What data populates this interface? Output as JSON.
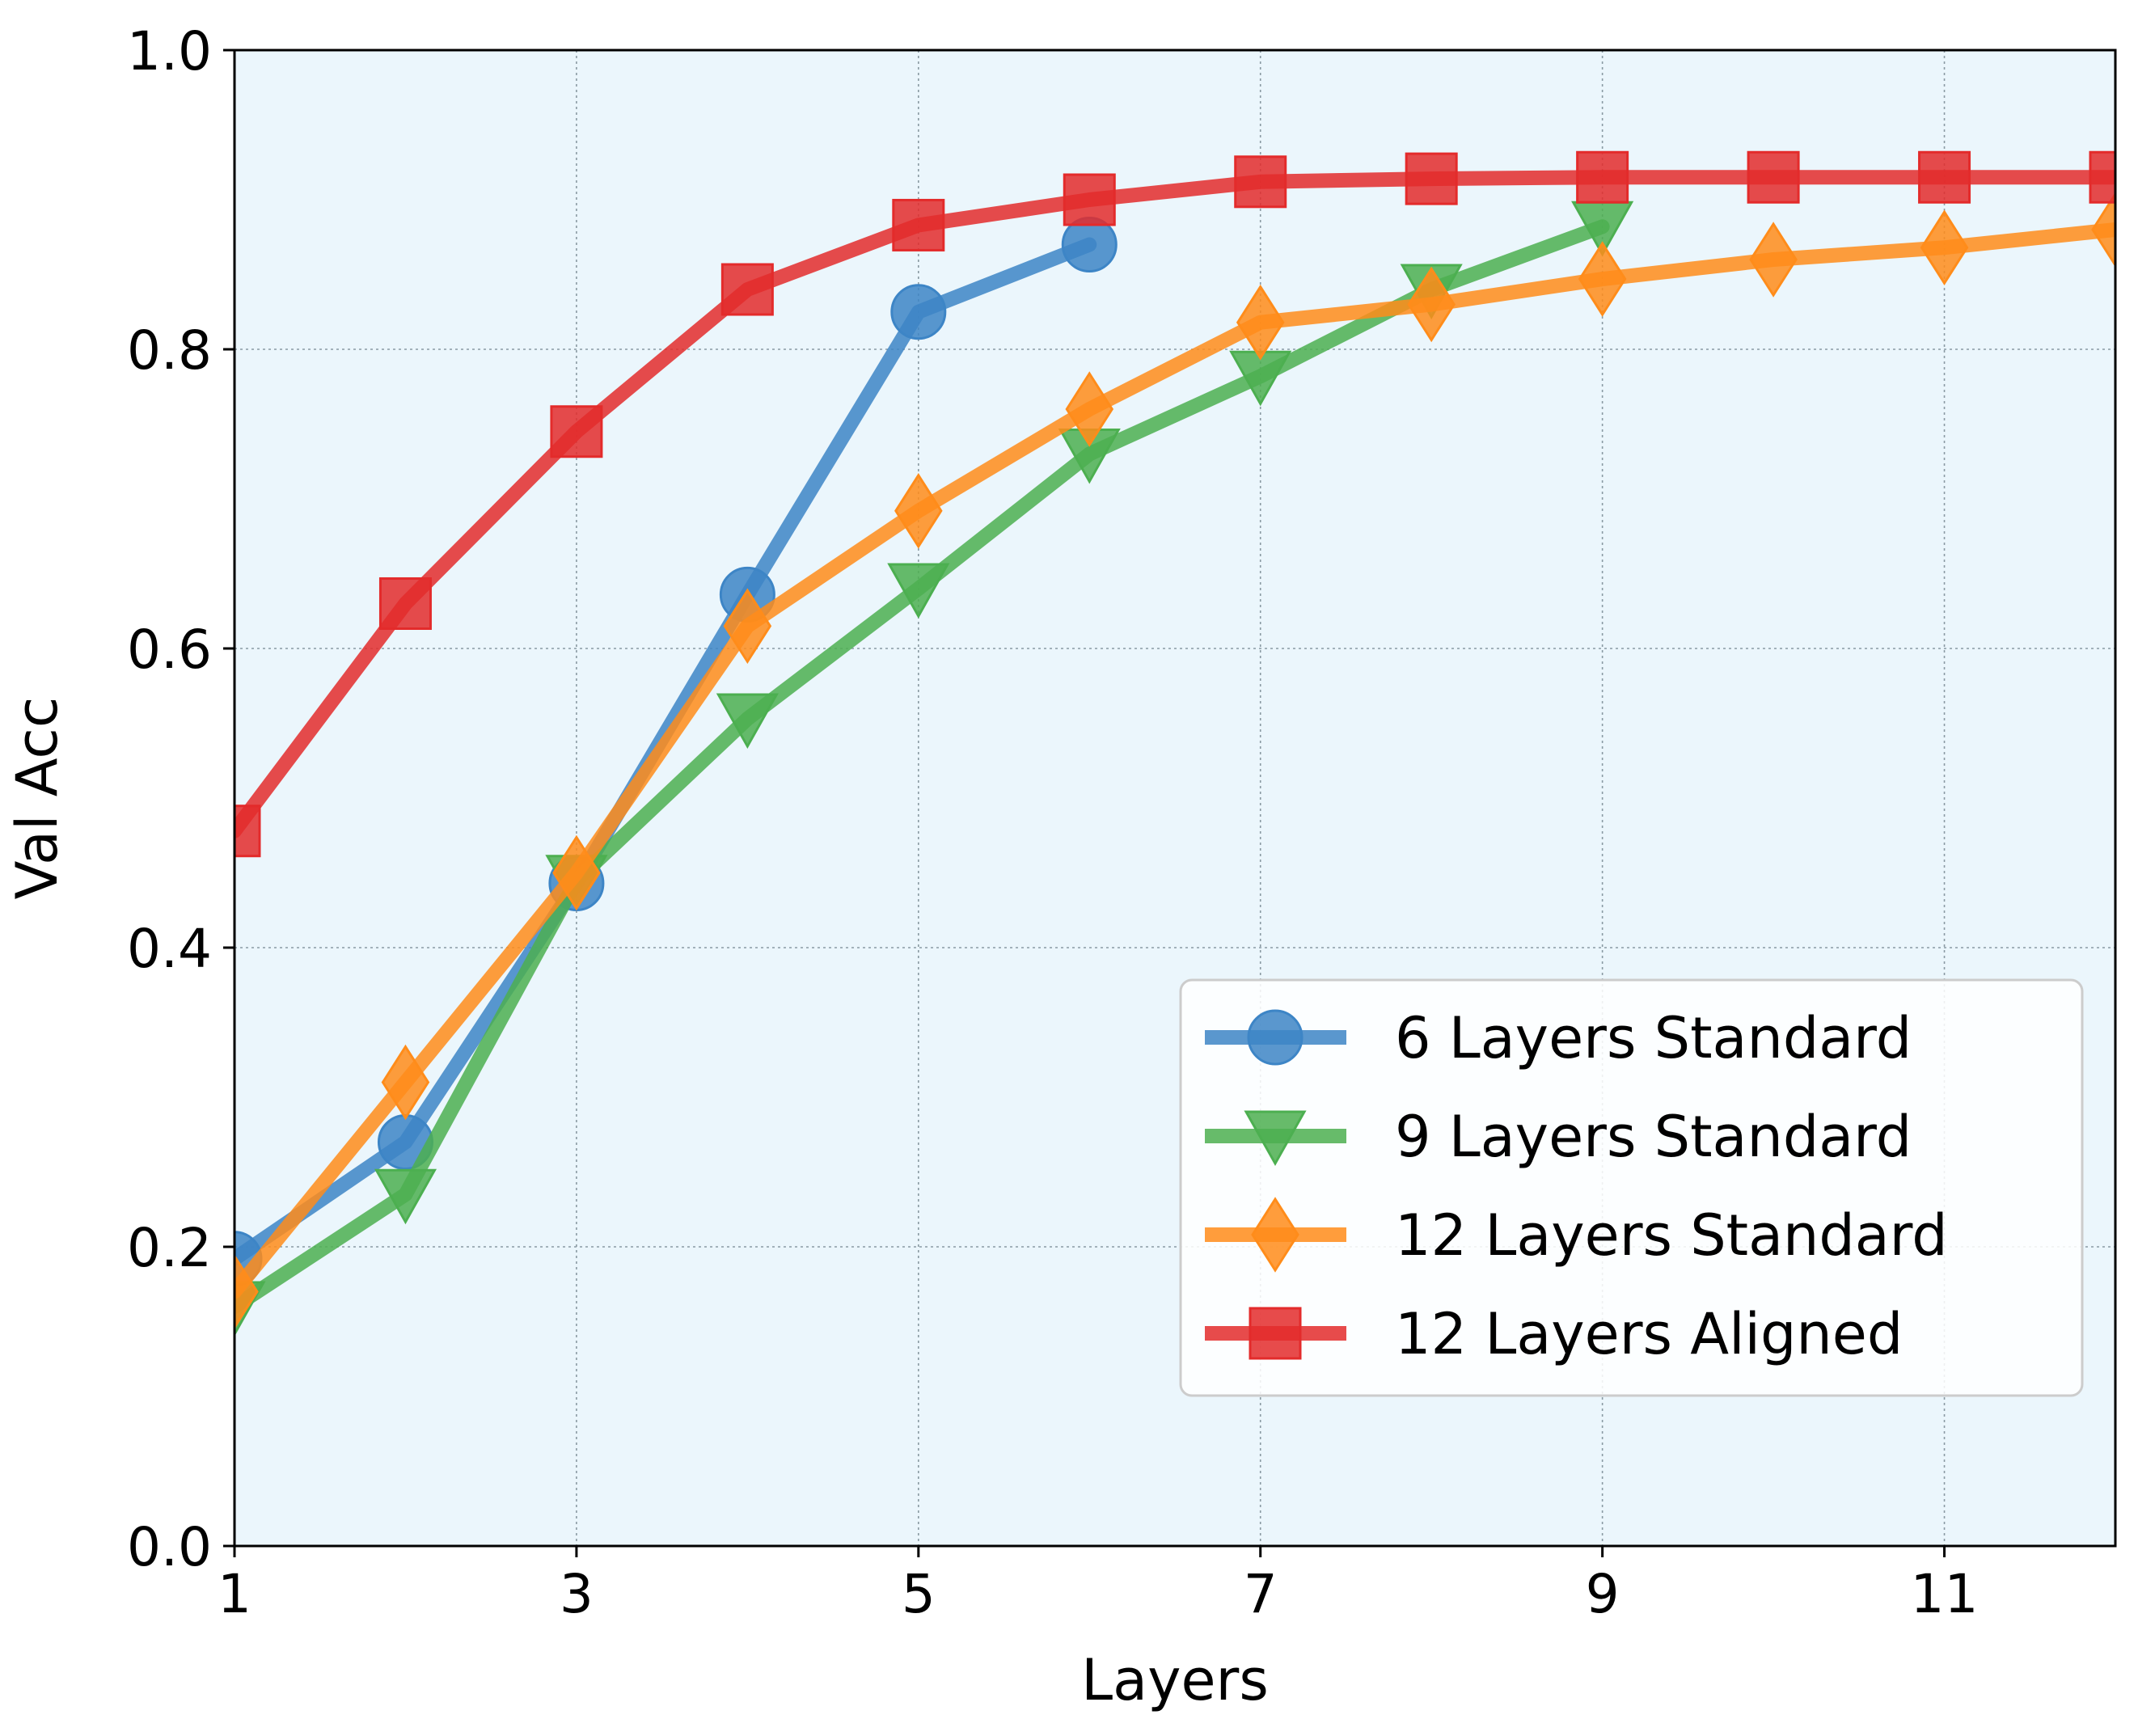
{
  "chart_data": {
    "type": "line",
    "xlabel": "Layers",
    "ylabel": "Val Acc",
    "xlim": [
      1,
      12
    ],
    "ylim": [
      0.0,
      1.0
    ],
    "xticks": [
      1,
      3,
      5,
      7,
      9,
      11
    ],
    "xtick_labels": [
      "1",
      "3",
      "5",
      "7",
      "9",
      "11"
    ],
    "yticks": [
      0.0,
      0.2,
      0.4,
      0.6,
      0.8,
      1.0
    ],
    "ytick_labels": [
      "0.0",
      "0.2",
      "0.4",
      "0.6",
      "0.8",
      "1.0"
    ],
    "grid": true,
    "legend_position": "lower-right",
    "background_color": "#ebf6fc",
    "series": [
      {
        "name": "6 Layers Standard",
        "color": "#3d85c6",
        "marker": "circle",
        "x": [
          1,
          2,
          3,
          4,
          5,
          6
        ],
        "y": [
          0.192,
          0.27,
          0.443,
          0.636,
          0.825,
          0.87
        ]
      },
      {
        "name": "9 Layers Standard",
        "color": "#4caf50",
        "marker": "triangle-down",
        "x": [
          1,
          2,
          3,
          4,
          5,
          6,
          7,
          8,
          9
        ],
        "y": [
          0.16,
          0.235,
          0.445,
          0.553,
          0.64,
          0.73,
          0.782,
          0.84,
          0.882
        ]
      },
      {
        "name": "12 Layers Standard",
        "color": "#ff8c1a",
        "marker": "diamond",
        "x": [
          1,
          2,
          3,
          4,
          5,
          6,
          7,
          8,
          9,
          10,
          11,
          12
        ],
        "y": [
          0.17,
          0.31,
          0.45,
          0.615,
          0.692,
          0.76,
          0.818,
          0.83,
          0.847,
          0.86,
          0.868,
          0.88
        ]
      },
      {
        "name": "12 Layers Aligned",
        "color": "#e32b2b",
        "marker": "square",
        "x": [
          1,
          2,
          3,
          4,
          5,
          6,
          7,
          8,
          9,
          10,
          11,
          12
        ],
        "y": [
          0.478,
          0.63,
          0.745,
          0.84,
          0.883,
          0.9,
          0.912,
          0.914,
          0.915,
          0.915,
          0.915,
          0.915
        ]
      }
    ]
  }
}
